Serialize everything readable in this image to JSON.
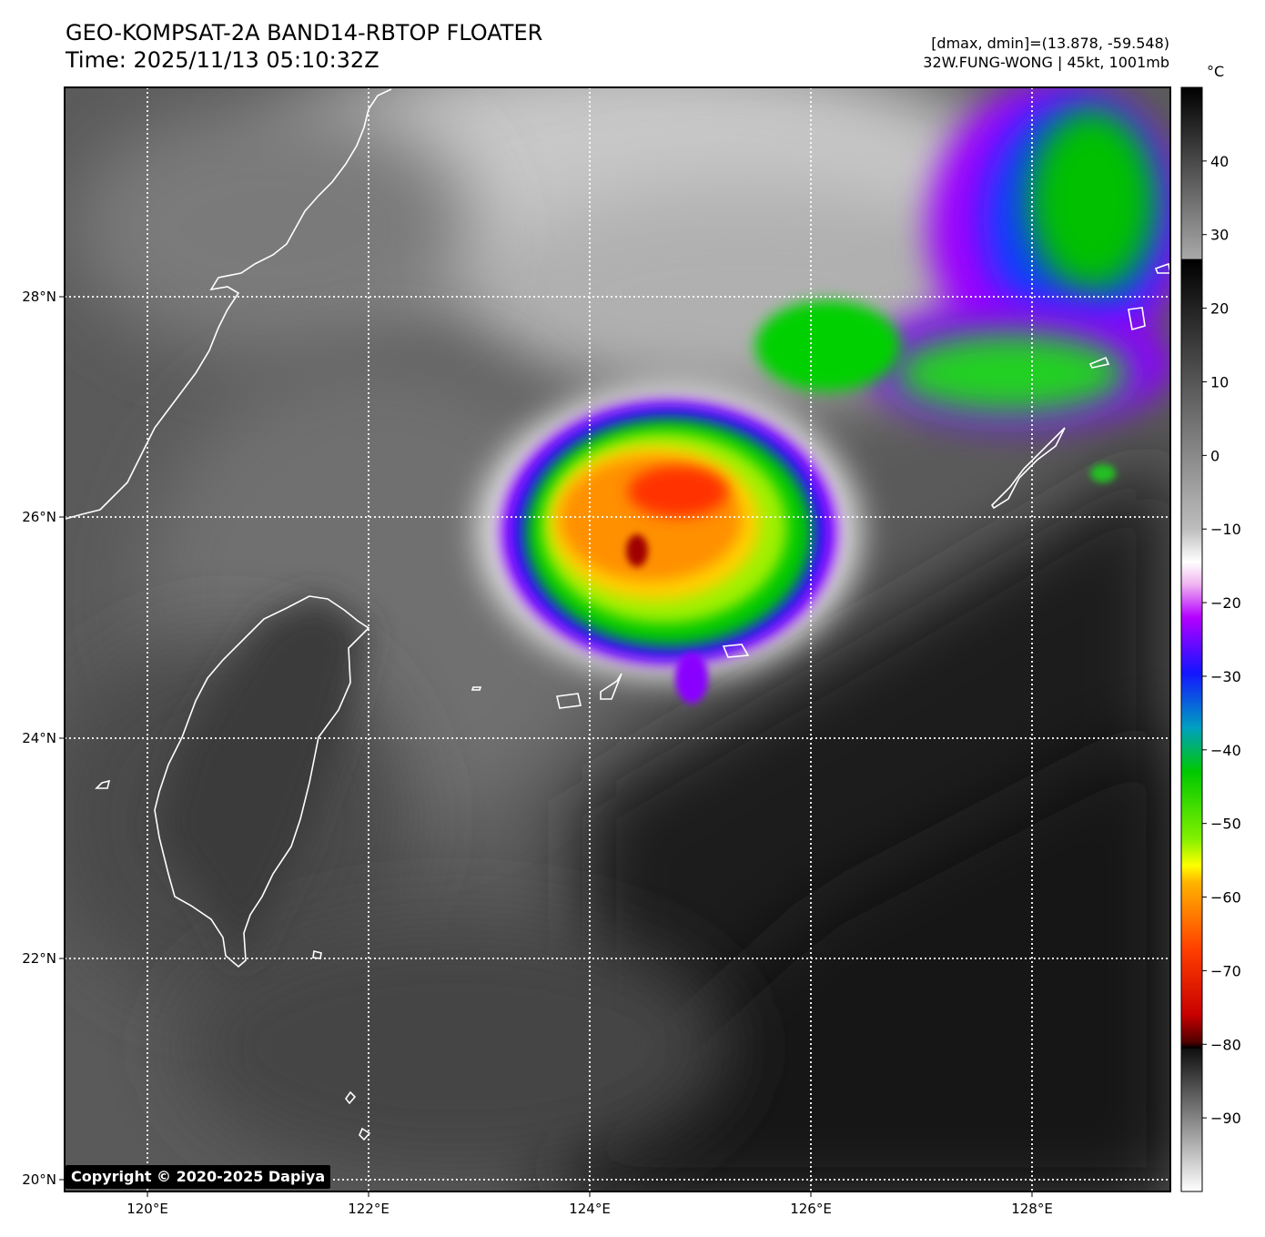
{
  "header": {
    "title_line1": "GEO-KOMPSAT-2A BAND14-RBTOP FLOATER",
    "title_line2": "Time: 2025/11/13 05:10:32Z",
    "info_line1": "[dmax, dmin]=(13.878, -59.548)",
    "info_line2": "32W.FUNG-WONG | 45kt, 1001mb"
  },
  "map": {
    "lon_ticks": [
      "120°E",
      "122°E",
      "124°E",
      "126°E",
      "128°E"
    ],
    "lat_ticks": [
      "28°N",
      "26°N",
      "24°N",
      "22°N",
      "20°N"
    ],
    "lon_range": [
      119.25,
      129.25
    ],
    "lat_range": [
      19.95,
      29.85
    ],
    "storm_center": {
      "lon": 124.9,
      "lat": 26.1
    },
    "copyright": "Copyright © 2020-2025 Dapiya"
  },
  "colorbar": {
    "unit": "°C",
    "tick_labels": [
      "40",
      "30",
      "20",
      "10",
      "0",
      "−10",
      "−20",
      "−30",
      "−40",
      "−50",
      "−60",
      "−70",
      "−80",
      "−90"
    ],
    "tick_values": [
      40,
      30,
      20,
      10,
      0,
      -10,
      -20,
      -30,
      -40,
      -50,
      -60,
      -70,
      -80,
      -90
    ],
    "range": [
      -100,
      50
    ]
  }
}
